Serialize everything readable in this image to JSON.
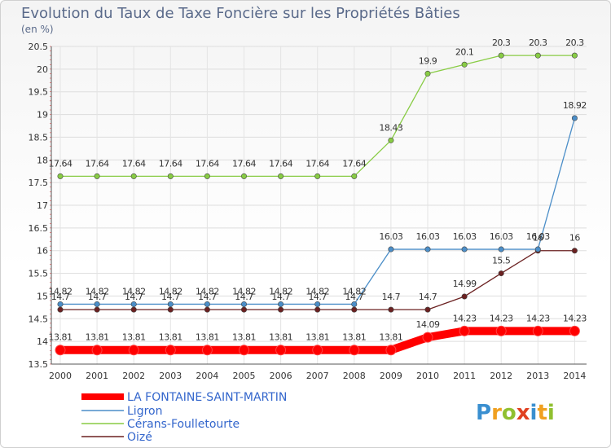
{
  "chart_data": {
    "type": "line",
    "title": "Evolution du Taux de Taxe Foncière sur les Propriétés Bâties",
    "ylabel": "(en %)",
    "xlabel": "",
    "ylim": [
      13.5,
      20.5
    ],
    "yticks": [
      "13.5",
      "14",
      "14.5",
      "15",
      "15.5",
      "16",
      "16.5",
      "17",
      "17.5",
      "18",
      "18.5",
      "19",
      "19.5",
      "20",
      "20.5"
    ],
    "categories": [
      "2000",
      "2001",
      "2002",
      "2003",
      "2004",
      "2005",
      "2006",
      "2007",
      "2008",
      "2009",
      "2010",
      "2011",
      "2012",
      "2013",
      "2014"
    ],
    "series": [
      {
        "name": "Oizé",
        "color": "#6b2121",
        "values": [
          14.7,
          14.7,
          14.7,
          14.7,
          14.7,
          14.7,
          14.7,
          14.7,
          14.7,
          14.7,
          14.7,
          14.99,
          15.5,
          16,
          16
        ],
        "labels": [
          "14.7",
          "14.7",
          "14.7",
          "14.7",
          "14.7",
          "14.7",
          "14.7",
          "14.7",
          "14.7",
          "14.7",
          "14.7",
          "14.99",
          "15.5",
          "16",
          "16"
        ]
      },
      {
        "name": "Ligron",
        "color": "#4b8ec8",
        "values": [
          14.82,
          14.82,
          14.82,
          14.82,
          14.82,
          14.82,
          14.82,
          14.82,
          14.82,
          16.03,
          16.03,
          16.03,
          16.03,
          16.03,
          18.92
        ],
        "labels": [
          "14.82",
          "14.82",
          "14.82",
          "14.82",
          "14.82",
          "14.82",
          "14.82",
          "14.82",
          "14.82",
          "16.03",
          "16.03",
          "16.03",
          "16.03",
          "16.03",
          "18.92"
        ]
      },
      {
        "name": "Cérans-Foulletourte",
        "color": "#88cc44",
        "values": [
          17.64,
          17.64,
          17.64,
          17.64,
          17.64,
          17.64,
          17.64,
          17.64,
          17.64,
          18.43,
          19.9,
          20.1,
          20.3,
          20.3,
          20.3
        ],
        "labels": [
          "17.64",
          "17.64",
          "17.64",
          "17.64",
          "17.64",
          "17.64",
          "17.64",
          "17.64",
          "17.64",
          "18.43",
          "19.9",
          "20.1",
          "20.3",
          "20.3",
          "20.3"
        ]
      },
      {
        "name": "LA FONTAINE-SAINT-MARTIN",
        "color": "#ff0000",
        "values": [
          13.81,
          13.81,
          13.81,
          13.81,
          13.81,
          13.81,
          13.81,
          13.81,
          13.81,
          13.81,
          14.09,
          14.23,
          14.23,
          14.23,
          14.23
        ],
        "labels": [
          "13.81",
          "13.81",
          "13.81",
          "13.81",
          "13.81",
          "13.81",
          "13.81",
          "13.81",
          "13.81",
          "13.81",
          "14.09",
          "14.23",
          "14.23",
          "14.23",
          "14.23"
        ]
      }
    ],
    "legend": [
      "LA FONTAINE-SAINT-MARTIN",
      "Ligron",
      "Cérans-Foulletourte",
      "Oizé"
    ]
  },
  "logo": {
    "parts": [
      "P",
      "r",
      "o",
      "x",
      "i",
      "t",
      "i"
    ],
    "colors": [
      "#3a8fd0",
      "#f0a020",
      "#90c030",
      "#e04020",
      "#3a8fd0",
      "#f0a020",
      "#90c030"
    ]
  }
}
